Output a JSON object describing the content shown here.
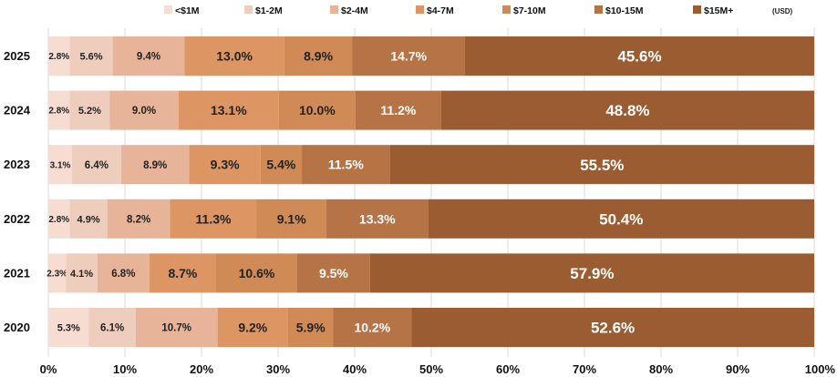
{
  "chart_data": {
    "type": "bar",
    "orientation": "horizontal",
    "stacked": true,
    "title": "",
    "xlabel": "",
    "ylabel": "",
    "xlim": [
      0,
      100
    ],
    "grid": true,
    "legend_position": "top",
    "currency_note": "(USD)",
    "categories": [
      "2025",
      "2024",
      "2023",
      "2022",
      "2021",
      "2020"
    ],
    "ticks": [
      "0%",
      "10%",
      "20%",
      "30%",
      "40%",
      "50%",
      "60%",
      "70%",
      "80%",
      "90%",
      "100%"
    ],
    "series": [
      {
        "name": "<$1M",
        "color": "#f6dcd1",
        "values": [
          2.8,
          2.8,
          3.1,
          2.8,
          2.3,
          5.3
        ],
        "labels": [
          "2.8%",
          "2.8%",
          "3.1%",
          "2.8%",
          "2.3%",
          "5.3%"
        ]
      },
      {
        "name": "$1-2M",
        "color": "#efcdbd",
        "values": [
          5.6,
          5.2,
          6.4,
          4.9,
          4.1,
          6.1
        ],
        "labels": [
          "5.6%",
          "5.2%",
          "6.4%",
          "4.9%",
          "4.1%",
          "6.1%"
        ]
      },
      {
        "name": "$2-4M",
        "color": "#e7b499",
        "values": [
          9.4,
          9.0,
          8.9,
          8.2,
          6.8,
          10.7
        ],
        "labels": [
          "9.4%",
          "9.0%",
          "8.9%",
          "8.2%",
          "6.8%",
          "10.7%"
        ]
      },
      {
        "name": "$4-7M",
        "color": "#dc9563",
        "values": [
          13.0,
          13.1,
          9.3,
          11.3,
          8.7,
          9.2
        ],
        "labels": [
          "13.0%",
          "13.1%",
          "9.3%",
          "11.3%",
          "8.7%",
          "9.2%"
        ]
      },
      {
        "name": "$7-10M",
        "color": "#cf8a55",
        "values": [
          8.9,
          10.0,
          5.4,
          9.1,
          10.6,
          5.9
        ],
        "labels": [
          "8.9%",
          "10.0%",
          "5.4%",
          "9.1%",
          "10.6%",
          "5.9%"
        ]
      },
      {
        "name": "$10-15M",
        "color": "#b67446",
        "values": [
          14.7,
          11.2,
          11.5,
          13.3,
          9.5,
          10.2
        ],
        "labels": [
          "14.7%",
          "11.2%",
          "11.5%",
          "13.3%",
          "9.5%",
          "10.2%"
        ]
      },
      {
        "name": "$15M+",
        "color": "#9a5c30",
        "values": [
          45.6,
          48.8,
          55.5,
          50.4,
          57.9,
          52.6
        ],
        "labels": [
          "45.6%",
          "48.8%",
          "55.5%",
          "50.4%",
          "57.9%",
          "52.6%"
        ]
      }
    ]
  }
}
